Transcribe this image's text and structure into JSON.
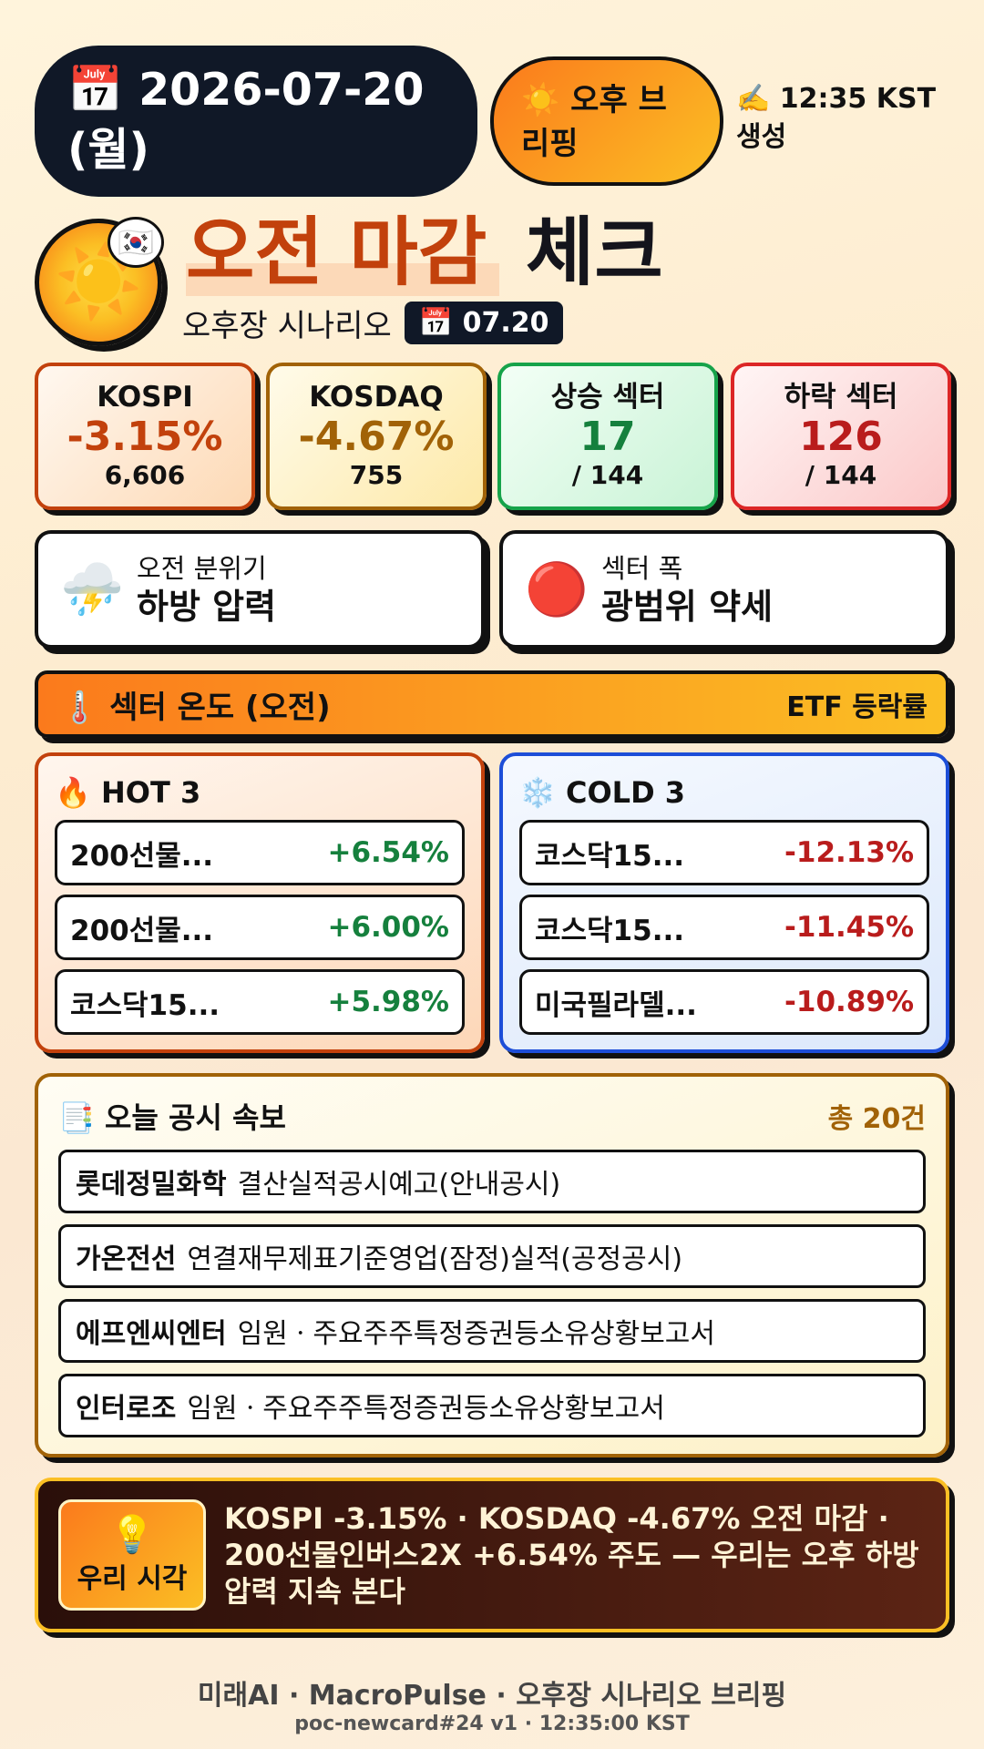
{
  "header": {
    "date_line1": "📅 2026-07-20",
    "date_line2": "(월)",
    "briefing_line1": "☀️ 오후 브",
    "briefing_line2": "리핑",
    "generated_line1": "✍️ 12:35 KST",
    "generated_line2": "생성"
  },
  "title": {
    "sun_icon": "☀️",
    "flag_icon": "🇰🇷",
    "highlight": "오전 마감",
    "rest": "체크",
    "subtitle": "오후장 시나리오",
    "date_chip": "📅 07.20"
  },
  "stats": {
    "kospi": {
      "label": "KOSPI",
      "value": "-3.15%",
      "sub": "6,606"
    },
    "kosdaq": {
      "label": "KOSDAQ",
      "value": "-4.67%",
      "sub": "755"
    },
    "up": {
      "label": "상승 섹터",
      "value": "17",
      "sub": "/ 144"
    },
    "down": {
      "label": "하락 섹터",
      "value": "126",
      "sub": "/ 144"
    }
  },
  "mood": {
    "morning": {
      "icon": "⛈️",
      "label": "오전 분위기",
      "value": "하방 압력"
    },
    "breadth": {
      "icon": "🔴",
      "label": "섹터 폭",
      "value": "광범위 약세"
    }
  },
  "sector_temp": {
    "title": "🌡️ 섹터 온도 (오전)",
    "right": "ETF 등락률"
  },
  "hot": {
    "title": "🔥 HOT 3",
    "items": [
      {
        "name": "200선물...",
        "change": "+6.54%"
      },
      {
        "name": "200선물...",
        "change": "+6.00%"
      },
      {
        "name": "코스닥15...",
        "change": "+5.98%"
      }
    ]
  },
  "cold": {
    "title": "❄️ COLD 3",
    "items": [
      {
        "name": "코스닥15...",
        "change": "-12.13%"
      },
      {
        "name": "코스닥15...",
        "change": "-11.45%"
      },
      {
        "name": "미국필라델...",
        "change": "-10.89%"
      }
    ]
  },
  "disclosures": {
    "title": "📑 오늘 공시 속보",
    "count": "총 20건",
    "items": [
      {
        "company": "롯데정밀화학",
        "desc": "결산실적공시예고(안내공시)"
      },
      {
        "company": "가온전선",
        "desc": "연결재무제표기준영업(잠정)실적(공정공시)"
      },
      {
        "company": "에프엔씨엔터",
        "desc": "임원ㆍ주요주주특정증권등소유상황보고서"
      },
      {
        "company": "인터로조",
        "desc": "임원ㆍ주요주주특정증권등소유상황보고서"
      }
    ]
  },
  "insight": {
    "icon": "💡",
    "badge": "우리 시각",
    "text": "KOSPI -3.15% · KOSDAQ -4.67% 오전 마감 · 200선물인버스2X +6.54% 주도 — 우리는 오후 하방 압력 지속 본다"
  },
  "footer": {
    "line1": "미래AI · MacroPulse · 오후장 시나리오 브리핑",
    "line2": "poc-newcard#24 v1 · 12:35:00 KST"
  }
}
